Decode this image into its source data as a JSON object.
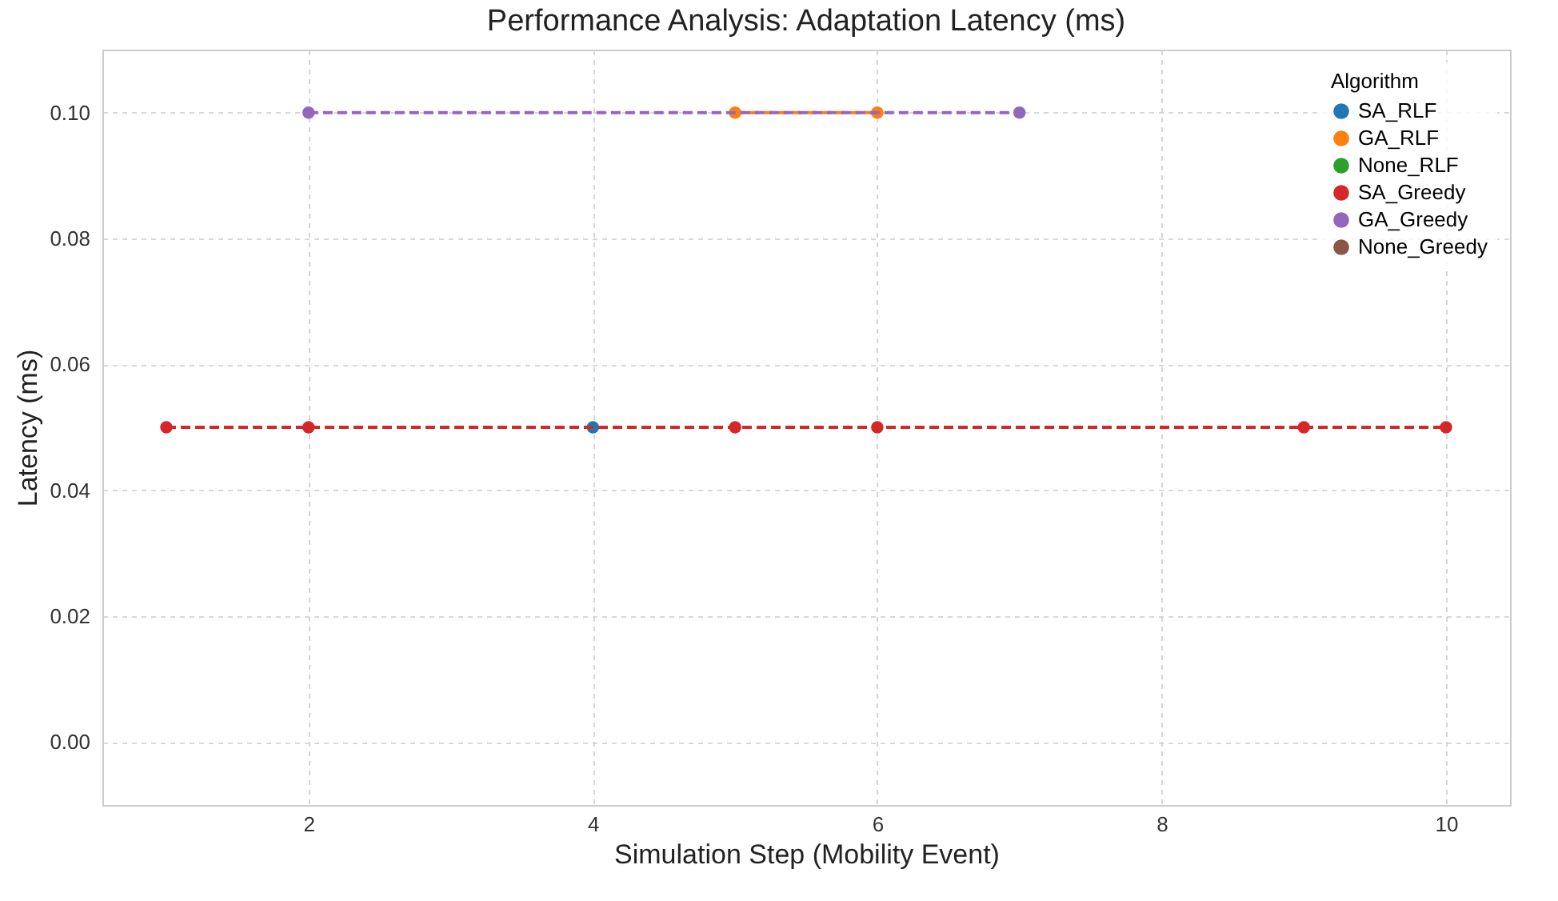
{
  "chart_data": {
    "type": "line",
    "title": "Performance Analysis: Adaptation Latency (ms)",
    "xlabel": "Simulation Step (Mobility Event)",
    "ylabel": "Latency (ms)",
    "legend_title": "Algorithm",
    "series": [
      {
        "name": "SA_RLF",
        "color": "#1f77b4",
        "x": [
          4
        ],
        "values": [
          0.05
        ]
      },
      {
        "name": "GA_RLF",
        "color": "#ff7f0e",
        "x": [
          5,
          6
        ],
        "values": [
          0.1,
          0.1
        ]
      },
      {
        "name": "None_RLF",
        "color": "#2ca02c"
      },
      {
        "name": "SA_Greedy",
        "color": "#d62728",
        "x": [
          1,
          2,
          5,
          6,
          9,
          10
        ],
        "values": [
          0.05,
          0.05,
          0.05,
          0.05,
          0.05,
          0.05
        ]
      },
      {
        "name": "GA_Greedy",
        "color": "#9467bd",
        "x": [
          2,
          7
        ],
        "values": [
          0.1,
          0.1
        ]
      },
      {
        "name": "None_Greedy",
        "color": "#8c564b"
      }
    ],
    "xlim": [
      0.55,
      10.45
    ],
    "xticks": [
      2,
      4,
      6,
      8,
      10
    ],
    "ylim": [
      -0.01,
      0.11
    ],
    "yticks": [
      {
        "value": 0,
        "label": "0.00"
      },
      {
        "value": 0.02,
        "label": "0.02"
      },
      {
        "value": 0.04,
        "label": "0.04"
      },
      {
        "value": 0.06,
        "label": "0.06"
      },
      {
        "value": 0.08,
        "label": "0.08"
      },
      {
        "value": 0.1,
        "label": "0.10"
      }
    ],
    "grid": true,
    "legend": "top right",
    "marker": "circle",
    "line_style": "dashed"
  }
}
